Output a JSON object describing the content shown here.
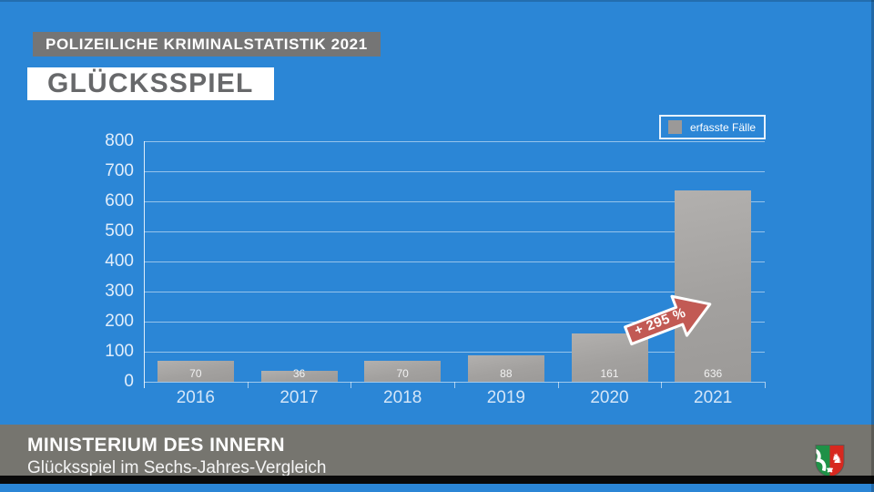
{
  "header": {
    "banner": "POLIZEILICHE KRIMINALSTATISTIK 2021",
    "title": "GLÜCKSSPIEL"
  },
  "chart_data": {
    "type": "bar",
    "categories": [
      "2016",
      "2017",
      "2018",
      "2019",
      "2020",
      "2021"
    ],
    "values": [
      70,
      36,
      70,
      88,
      161,
      636
    ],
    "legend_label": "erfasste Fälle",
    "ylim": [
      0,
      800
    ],
    "yticks": [
      0,
      100,
      200,
      300,
      400,
      500,
      600,
      700,
      800
    ],
    "grid": true,
    "legend_position": "top-right",
    "annotation": {
      "text": "+ 295 %",
      "target": "2021"
    }
  },
  "footer": {
    "title": "MINISTERIUM DES INNERN",
    "subtitle": "Glücksspiel im Sechs-Jahres-Vergleich",
    "logo": "nrw-coat-of-arms"
  },
  "colors": {
    "background": "#2b86d6",
    "banner_gray": "#757575",
    "title_text": "#67686a",
    "bar_gray": "#a6a4a2",
    "arrow_red": "#c25a54",
    "footer_gray": "#76756f",
    "legend_border": "#e8f2fc"
  }
}
